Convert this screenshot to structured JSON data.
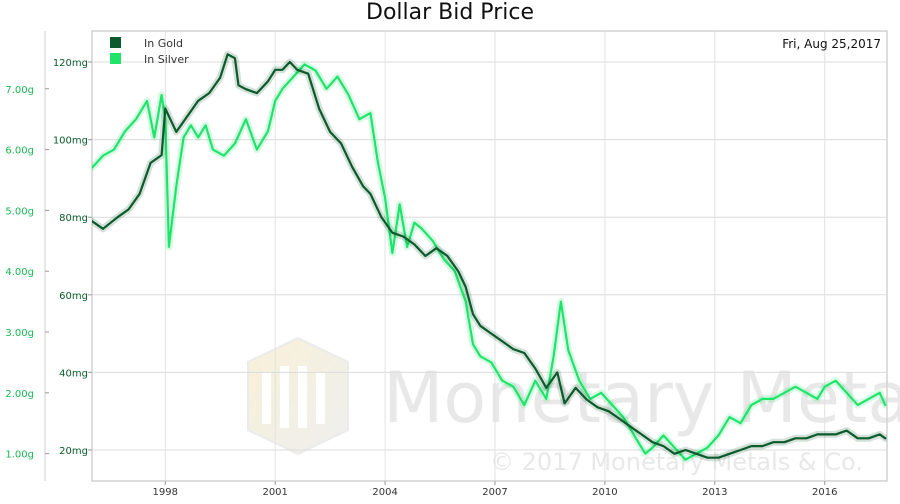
{
  "chart_data": {
    "type": "line",
    "title": "Dollar Bid Price",
    "date_label": "Fri, Aug 25,2017",
    "watermark": {
      "brand": "Monetary Metals",
      "copyright": "© 2017 Monetary Metals & Co."
    },
    "x_axis": {
      "ticks": [
        "1998",
        "2001",
        "2004",
        "2007",
        "2010",
        "2013",
        "2016"
      ],
      "range": [
        1996.0,
        2017.7
      ]
    },
    "y_axis_gold": {
      "unit": "mg",
      "ticks": [
        "20mg",
        "40mg",
        "60mg",
        "80mg",
        "100mg",
        "120mg"
      ],
      "range": [
        12,
        128
      ],
      "color": "#0b5a2b"
    },
    "y_axis_silver": {
      "unit": "g",
      "ticks": [
        "1.00g",
        "2.00g",
        "3.00g",
        "4.00g",
        "5.00g",
        "6.00g",
        "7.00g"
      ],
      "range": [
        0.55,
        7.95
      ],
      "color": "#19b854"
    },
    "legend_placement": "top-left",
    "grid": true,
    "series": [
      {
        "name": "In Gold",
        "axis": "gold",
        "color": "#0b5a2b",
        "x": [
          1996.0,
          1996.3,
          1996.7,
          1997.0,
          1997.3,
          1997.6,
          1997.9,
          1998.0,
          1998.3,
          1998.6,
          1998.9,
          1999.2,
          1999.5,
          1999.7,
          1999.9,
          2000.0,
          2000.2,
          2000.5,
          2000.8,
          2001.0,
          2001.2,
          2001.4,
          2001.6,
          2001.9,
          2002.2,
          2002.5,
          2002.8,
          2003.1,
          2003.4,
          2003.6,
          2003.9,
          2004.2,
          2004.5,
          2004.8,
          2005.1,
          2005.4,
          2005.7,
          2006.0,
          2006.2,
          2006.4,
          2006.6,
          2006.9,
          2007.2,
          2007.5,
          2007.8,
          2008.1,
          2008.4,
          2008.7,
          2008.9,
          2009.2,
          2009.5,
          2009.8,
          2010.1,
          2010.4,
          2010.7,
          2011.0,
          2011.3,
          2011.6,
          2011.9,
          2012.2,
          2012.5,
          2012.8,
          2013.1,
          2013.4,
          2013.7,
          2014.0,
          2014.3,
          2014.6,
          2014.9,
          2015.2,
          2015.5,
          2015.8,
          2016.0,
          2016.3,
          2016.6,
          2016.9,
          2017.2,
          2017.5,
          2017.65
        ],
        "values": [
          79,
          77,
          80,
          82,
          86,
          94,
          96,
          108,
          102,
          106,
          110,
          112,
          116,
          122,
          121,
          114,
          113,
          112,
          115,
          118,
          118,
          120,
          118,
          117,
          108,
          102,
          99,
          93,
          88,
          86,
          80,
          76,
          75,
          73,
          70,
          72,
          70,
          66,
          62,
          55,
          52,
          50,
          48,
          46,
          45,
          41,
          36,
          40,
          32,
          36,
          33,
          31,
          30,
          28,
          26,
          24,
          22,
          21,
          19,
          20,
          19,
          18,
          18,
          19,
          20,
          21,
          21,
          22,
          22,
          23,
          23,
          24,
          24,
          24,
          25,
          23,
          23,
          24,
          23
        ]
      },
      {
        "name": "In Silver",
        "axis": "silver",
        "color": "#1ee56a",
        "x": [
          1996.0,
          1996.3,
          1996.6,
          1996.9,
          1997.2,
          1997.5,
          1997.7,
          1997.9,
          1998.0,
          1998.1,
          1998.3,
          1998.5,
          1998.7,
          1998.9,
          1999.1,
          1999.3,
          1999.6,
          1999.9,
          2000.2,
          2000.5,
          2000.8,
          2001.0,
          2001.2,
          2001.5,
          2001.8,
          2002.1,
          2002.4,
          2002.7,
          2003.0,
          2003.3,
          2003.6,
          2003.8,
          2004.0,
          2004.2,
          2004.4,
          2004.6,
          2004.8,
          2005.0,
          2005.3,
          2005.6,
          2005.9,
          2006.2,
          2006.4,
          2006.6,
          2006.9,
          2007.2,
          2007.5,
          2007.8,
          2008.1,
          2008.4,
          2008.6,
          2008.8,
          2009.0,
          2009.3,
          2009.6,
          2009.9,
          2010.2,
          2010.5,
          2010.8,
          2011.1,
          2011.3,
          2011.6,
          2011.9,
          2012.2,
          2012.5,
          2012.8,
          2013.1,
          2013.4,
          2013.7,
          2014.0,
          2014.3,
          2014.6,
          2014.9,
          2015.2,
          2015.5,
          2015.8,
          2016.0,
          2016.3,
          2016.6,
          2016.9,
          2017.2,
          2017.5,
          2017.65
        ],
        "values": [
          5.7,
          5.9,
          6.0,
          6.3,
          6.5,
          6.8,
          6.2,
          6.9,
          6.5,
          4.4,
          5.4,
          6.2,
          6.4,
          6.2,
          6.4,
          6.0,
          5.9,
          6.1,
          6.5,
          6.0,
          6.3,
          6.8,
          7.0,
          7.2,
          7.4,
          7.3,
          7.0,
          7.2,
          6.9,
          6.5,
          6.6,
          5.8,
          5.2,
          4.3,
          5.1,
          4.4,
          4.8,
          4.7,
          4.5,
          4.2,
          4.0,
          3.5,
          2.8,
          2.6,
          2.5,
          2.2,
          2.1,
          1.8,
          2.2,
          1.9,
          2.6,
          3.5,
          2.7,
          2.2,
          1.9,
          2.0,
          1.8,
          1.6,
          1.3,
          1.0,
          1.1,
          1.3,
          1.1,
          0.9,
          1.0,
          1.1,
          1.3,
          1.6,
          1.5,
          1.8,
          1.9,
          1.9,
          2.0,
          2.1,
          2.0,
          1.9,
          2.1,
          2.2,
          2.0,
          1.8,
          1.9,
          2.0,
          1.8
        ]
      }
    ]
  }
}
